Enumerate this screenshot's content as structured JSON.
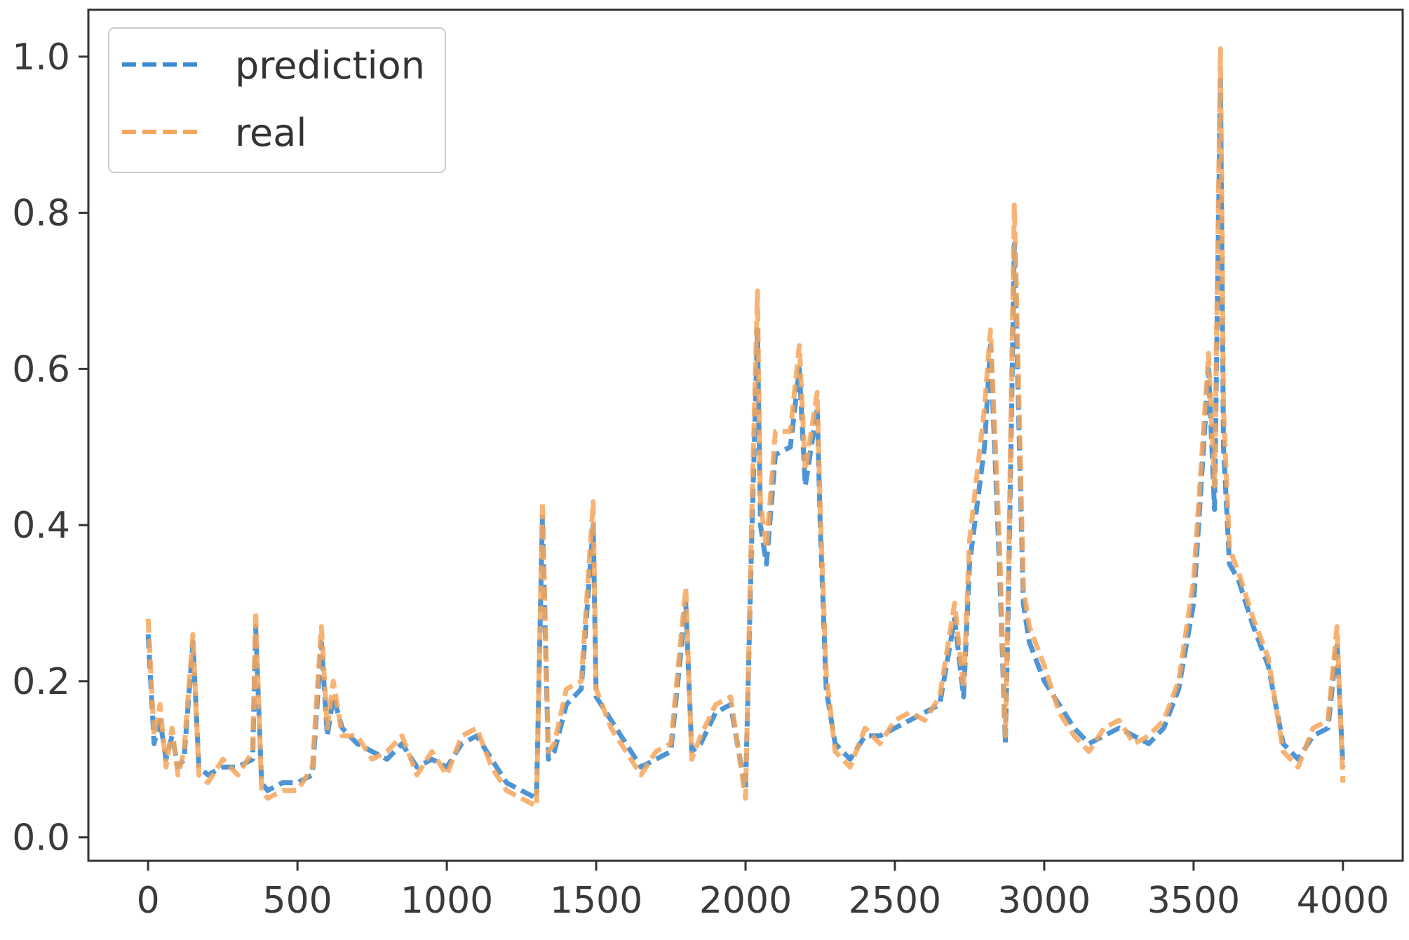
{
  "chart_data": {
    "type": "line",
    "xlim": [
      -200,
      4200
    ],
    "ylim": [
      -0.03,
      1.06
    ],
    "xticks": [
      0,
      500,
      1000,
      1500,
      2000,
      2500,
      3000,
      3500,
      4000
    ],
    "xtick_labels": [
      "0",
      "500",
      "1000",
      "1500",
      "2000",
      "2500",
      "3000",
      "3500",
      "4000"
    ],
    "yticks": [
      0.0,
      0.2,
      0.4,
      0.6,
      0.8,
      1.0
    ],
    "ytick_labels": [
      "0.0",
      "0.2",
      "0.4",
      "0.6",
      "0.8",
      "1.0"
    ],
    "legend": {
      "position": "upper-left"
    },
    "grid": false,
    "series": [
      {
        "name": "prediction",
        "color": "#3a8ad0",
        "style": "dashed",
        "x": [
          0,
          20,
          40,
          60,
          80,
          100,
          120,
          150,
          170,
          200,
          250,
          300,
          350,
          360,
          380,
          400,
          450,
          500,
          550,
          580,
          600,
          620,
          650,
          700,
          750,
          800,
          850,
          900,
          950,
          1000,
          1050,
          1100,
          1150,
          1200,
          1250,
          1300,
          1320,
          1340,
          1360,
          1400,
          1450,
          1490,
          1500,
          1550,
          1600,
          1650,
          1700,
          1750,
          1800,
          1820,
          1850,
          1900,
          1950,
          2000,
          2020,
          2040,
          2050,
          2070,
          2100,
          2150,
          2180,
          2200,
          2240,
          2250,
          2270,
          2300,
          2350,
          2400,
          2450,
          2500,
          2550,
          2600,
          2650,
          2700,
          2730,
          2750,
          2800,
          2820,
          2850,
          2870,
          2880,
          2900,
          2930,
          2950,
          3000,
          3050,
          3100,
          3150,
          3200,
          3250,
          3300,
          3350,
          3400,
          3450,
          3500,
          3550,
          3570,
          3590,
          3600,
          3620,
          3650,
          3700,
          3750,
          3800,
          3850,
          3900,
          3950,
          3980,
          4000
        ],
        "y": [
          0.26,
          0.12,
          0.15,
          0.1,
          0.13,
          0.09,
          0.1,
          0.25,
          0.09,
          0.08,
          0.09,
          0.09,
          0.1,
          0.27,
          0.07,
          0.06,
          0.07,
          0.07,
          0.08,
          0.25,
          0.13,
          0.18,
          0.14,
          0.12,
          0.11,
          0.1,
          0.12,
          0.09,
          0.1,
          0.09,
          0.12,
          0.13,
          0.1,
          0.07,
          0.06,
          0.05,
          0.41,
          0.1,
          0.11,
          0.17,
          0.19,
          0.4,
          0.18,
          0.15,
          0.12,
          0.09,
          0.1,
          0.11,
          0.3,
          0.11,
          0.12,
          0.16,
          0.17,
          0.06,
          0.37,
          0.65,
          0.4,
          0.35,
          0.49,
          0.5,
          0.6,
          0.45,
          0.55,
          0.4,
          0.19,
          0.12,
          0.1,
          0.13,
          0.13,
          0.14,
          0.15,
          0.16,
          0.17,
          0.28,
          0.18,
          0.35,
          0.5,
          0.63,
          0.35,
          0.12,
          0.3,
          0.76,
          0.3,
          0.25,
          0.2,
          0.17,
          0.14,
          0.12,
          0.13,
          0.14,
          0.13,
          0.12,
          0.14,
          0.19,
          0.3,
          0.6,
          0.42,
          0.97,
          0.5,
          0.35,
          0.33,
          0.27,
          0.22,
          0.12,
          0.1,
          0.13,
          0.14,
          0.25,
          0.09
        ]
      },
      {
        "name": "real",
        "color": "#f4a65c",
        "style": "dashed",
        "x": [
          0,
          20,
          40,
          60,
          80,
          100,
          120,
          150,
          170,
          200,
          250,
          300,
          350,
          360,
          380,
          400,
          450,
          500,
          550,
          580,
          600,
          620,
          650,
          700,
          750,
          800,
          850,
          900,
          950,
          1000,
          1050,
          1100,
          1150,
          1200,
          1250,
          1300,
          1320,
          1340,
          1360,
          1400,
          1450,
          1490,
          1500,
          1550,
          1600,
          1650,
          1700,
          1750,
          1800,
          1820,
          1850,
          1900,
          1950,
          2000,
          2020,
          2040,
          2050,
          2070,
          2100,
          2150,
          2180,
          2200,
          2240,
          2250,
          2270,
          2300,
          2350,
          2400,
          2450,
          2500,
          2550,
          2600,
          2650,
          2700,
          2730,
          2750,
          2800,
          2820,
          2850,
          2870,
          2880,
          2900,
          2930,
          2950,
          3000,
          3050,
          3100,
          3150,
          3200,
          3250,
          3300,
          3350,
          3400,
          3450,
          3500,
          3550,
          3570,
          3590,
          3600,
          3620,
          3650,
          3700,
          3750,
          3800,
          3850,
          3900,
          3950,
          3980,
          4000
        ],
        "y": [
          0.28,
          0.13,
          0.17,
          0.09,
          0.14,
          0.08,
          0.11,
          0.26,
          0.08,
          0.07,
          0.1,
          0.08,
          0.11,
          0.29,
          0.06,
          0.05,
          0.06,
          0.06,
          0.09,
          0.27,
          0.14,
          0.2,
          0.13,
          0.13,
          0.1,
          0.11,
          0.13,
          0.08,
          0.11,
          0.08,
          0.13,
          0.14,
          0.09,
          0.06,
          0.05,
          0.04,
          0.43,
          0.11,
          0.12,
          0.19,
          0.2,
          0.43,
          0.19,
          0.14,
          0.11,
          0.08,
          0.11,
          0.12,
          0.32,
          0.1,
          0.13,
          0.17,
          0.18,
          0.05,
          0.4,
          0.7,
          0.43,
          0.37,
          0.52,
          0.52,
          0.63,
          0.47,
          0.57,
          0.42,
          0.21,
          0.11,
          0.09,
          0.14,
          0.12,
          0.15,
          0.16,
          0.15,
          0.18,
          0.3,
          0.19,
          0.38,
          0.55,
          0.65,
          0.38,
          0.13,
          0.33,
          0.81,
          0.32,
          0.27,
          0.22,
          0.16,
          0.13,
          0.11,
          0.14,
          0.15,
          0.12,
          0.13,
          0.15,
          0.2,
          0.33,
          0.62,
          0.45,
          1.01,
          0.55,
          0.37,
          0.34,
          0.28,
          0.23,
          0.11,
          0.09,
          0.14,
          0.15,
          0.27,
          0.07
        ]
      }
    ]
  }
}
